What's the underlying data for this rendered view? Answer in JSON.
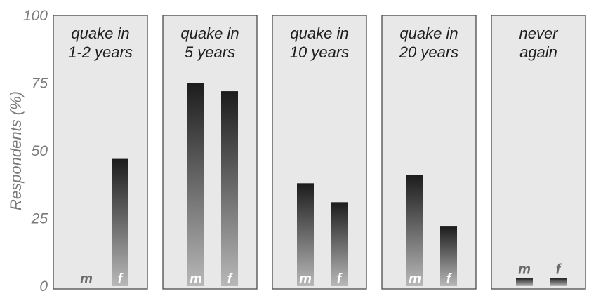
{
  "chart_data": {
    "type": "bar",
    "ylabel": "Respondents (%)",
    "ylim": [
      0,
      100
    ],
    "yticks": [
      "0",
      "25",
      "50",
      "75",
      "100"
    ],
    "series_labels": [
      "m",
      "f"
    ],
    "grid": false,
    "panels": [
      {
        "title": [
          "quake in",
          "1-2 years"
        ],
        "values": {
          "m": 0,
          "f": 47
        }
      },
      {
        "title": [
          "quake in",
          "5 years"
        ],
        "values": {
          "m": 75,
          "f": 72
        }
      },
      {
        "title": [
          "quake in",
          "10 years"
        ],
        "values": {
          "m": 38,
          "f": 31
        }
      },
      {
        "title": [
          "quake in",
          "20 years"
        ],
        "values": {
          "m": 41,
          "f": 22
        }
      },
      {
        "title": [
          "never",
          "again"
        ],
        "values": {
          "m": 3,
          "f": 3
        }
      }
    ],
    "colors": {
      "bar_top": "#1c1c1c",
      "bar_bottom": "#b8b8b8",
      "panel": "#e8e8e8",
      "axis_text": "#7a7a7a"
    }
  }
}
